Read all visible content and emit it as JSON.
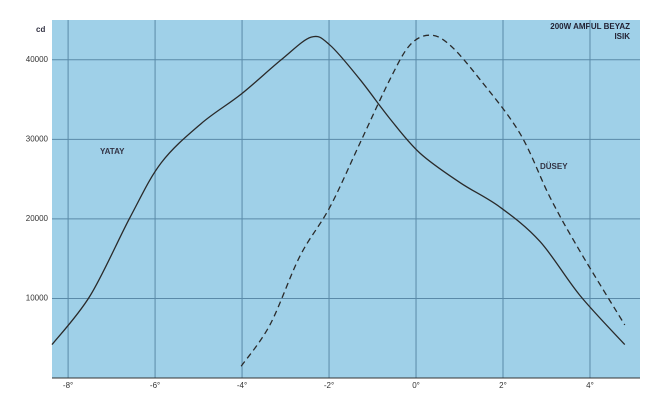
{
  "chart_data": {
    "type": "line",
    "title": "200W AMPUL BEYAZ ISIK",
    "y_label": "cd",
    "xlim": [
      -8.37,
      5.15
    ],
    "xticks": [
      {
        "value": -8,
        "label": "-8°"
      },
      {
        "value": -6,
        "label": "-6°"
      },
      {
        "value": -4,
        "label": "-4°"
      },
      {
        "value": -2,
        "label": "-2°"
      },
      {
        "value": 0,
        "label": "0°"
      },
      {
        "value": 2,
        "label": "2°"
      },
      {
        "value": 4,
        "label": "4°"
      }
    ],
    "ylim": [
      0,
      45000
    ],
    "yticks": [
      10000,
      20000,
      30000,
      40000
    ],
    "grid": true,
    "series": [
      {
        "name": "YATAY",
        "color": "#2a2a2a",
        "dash": false,
        "x": [
          -8.37,
          -7.49,
          -6.57,
          -5.86,
          -4.94,
          -4.02,
          -3.1,
          -2.41,
          -1.98,
          -1.29,
          -0.6,
          0.09,
          1.01,
          1.93,
          2.85,
          3.77,
          4.8
        ],
        "values": [
          4200,
          10370,
          20250,
          27040,
          31980,
          35680,
          40000,
          42840,
          41850,
          37530,
          32590,
          28270,
          24570,
          21480,
          17160,
          10370,
          4200
        ]
      },
      {
        "name": "DÜSEY",
        "color": "#2a2a2a",
        "dash": true,
        "x": [
          -4.02,
          -3.36,
          -2.67,
          -1.98,
          -1.29,
          -0.6,
          -0.14,
          0.32,
          0.78,
          1.47,
          2.39,
          3.08,
          3.77,
          4.8
        ],
        "values": [
          1480,
          6670,
          15310,
          21480,
          29510,
          37530,
          41850,
          43090,
          41850,
          37530,
          30740,
          22720,
          15930,
          6670
        ]
      }
    ]
  }
}
